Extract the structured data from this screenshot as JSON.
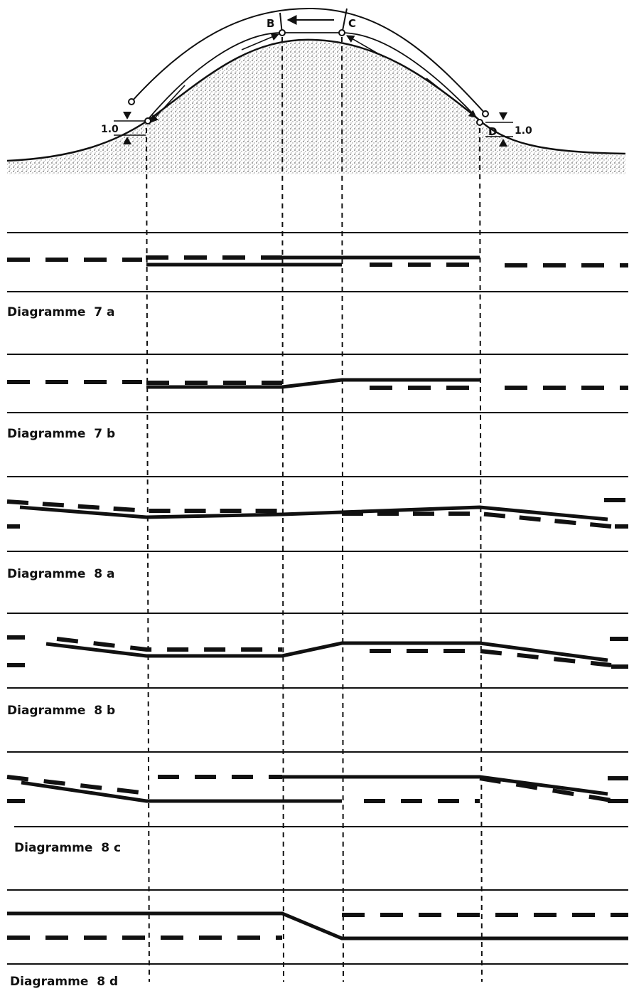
{
  "points": {
    "b": "B",
    "c": "C",
    "d": "D"
  },
  "dimensions": {
    "left": "1.0",
    "right": "1.0"
  },
  "diagrams": [
    {
      "title": "Diagramme  7 a"
    },
    {
      "title": "Diagramme  7 b"
    },
    {
      "title": "Diagramme  8 a"
    },
    {
      "title": "Diagramme  8 b"
    },
    {
      "title": "Diagramme  8 c"
    },
    {
      "title": "Diagramme  8 d"
    }
  ],
  "colors": {
    "ink": "#111111",
    "paper": "#ffffff",
    "ground": "#9a9a9a"
  }
}
